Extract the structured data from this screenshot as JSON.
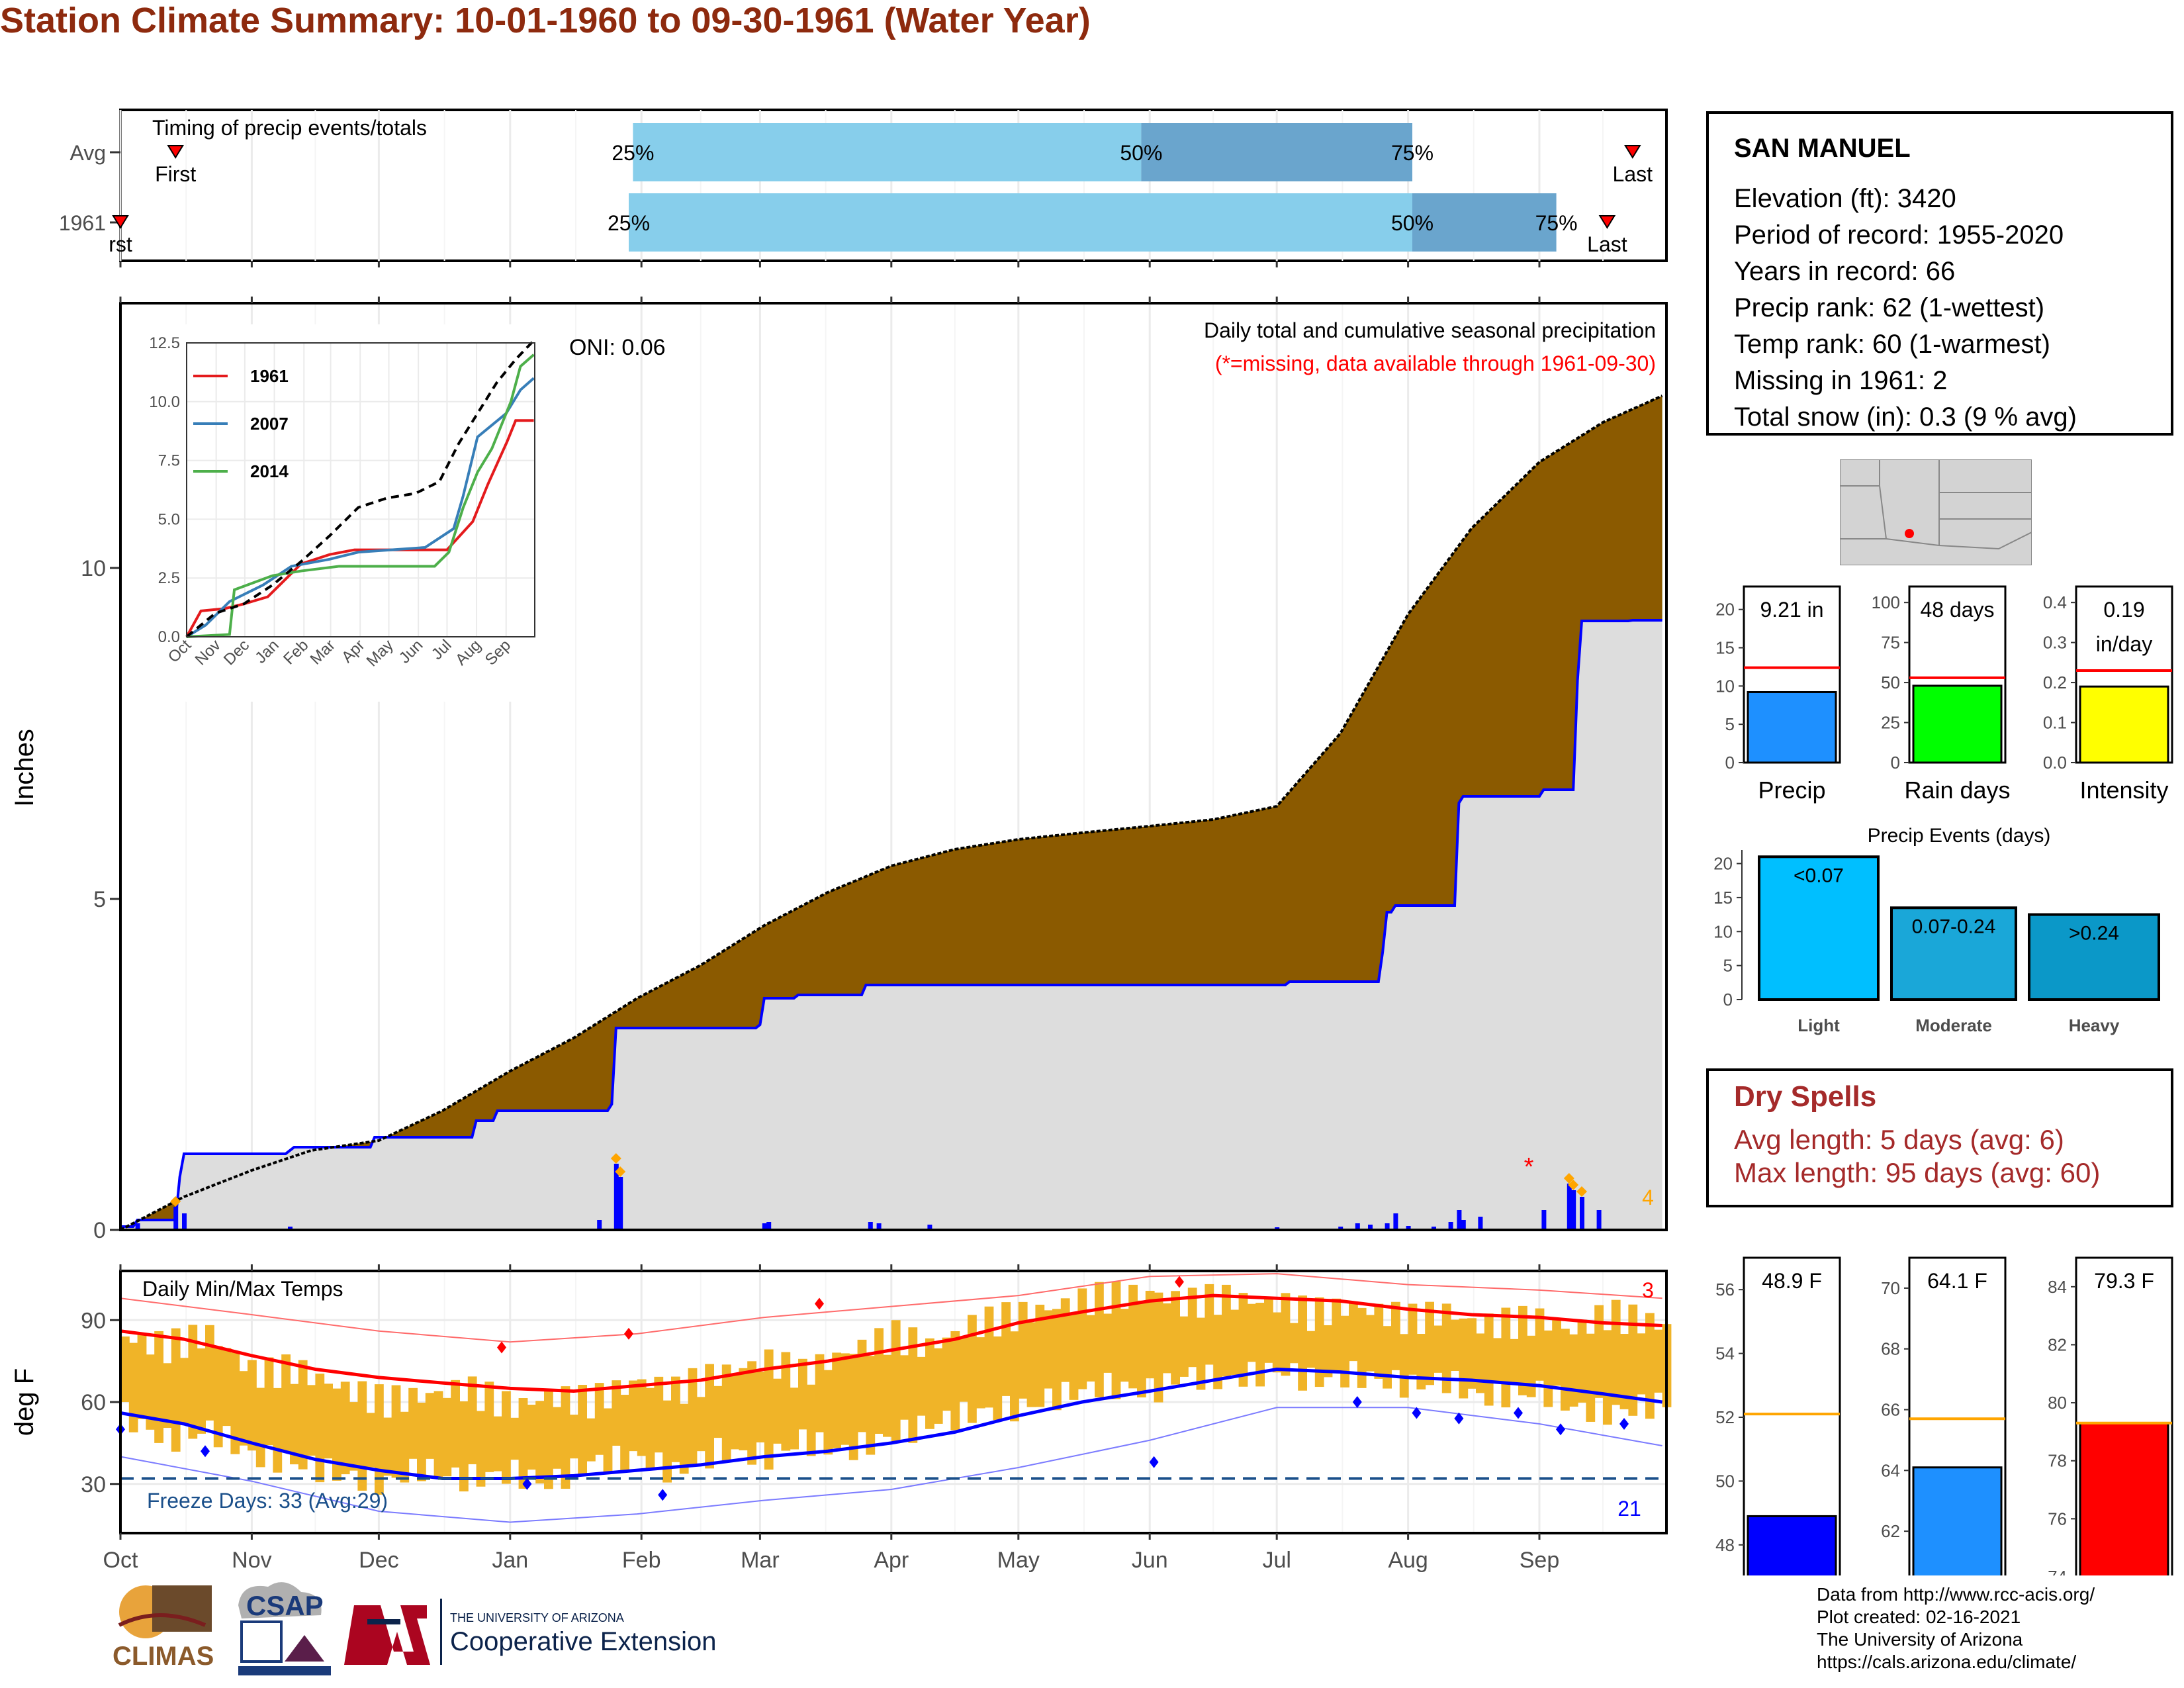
{
  "title": "Station Climate Summary: 10-01-1960 to 09-30-1961 (Water Year)",
  "timing": {
    "label": "Timing of precip events/totals",
    "rows": [
      {
        "name": "Avg",
        "first_day": 13,
        "q25_day": 121,
        "q50_day": 241,
        "q75_day": 305,
        "last_day": 357,
        "first_label": "First",
        "last_label": "Last",
        "q25_label": "25%",
        "q50_label": "50%",
        "q75_label": "75%"
      },
      {
        "name": "1961",
        "first_day": 0,
        "q25_day": 120,
        "q50_day": 305,
        "q75_day": 339,
        "last_day": 351,
        "first_label": "rst",
        "last_label": "Last",
        "q25_label": "25%",
        "q50_label": "50%",
        "q75_label": "75%"
      }
    ]
  },
  "precip_panel": {
    "ylabel": "Inches",
    "oni": "ONI: 0.06",
    "subtitle": "Daily total and cumulative seasonal precipitation",
    "missing_note": "(*=missing, data available through 1961-09-30)",
    "big_count": "4",
    "colors": {
      "avg_fill": "#8b5a00",
      "above_fill": "#008000",
      "below_fill": "#dddddd",
      "obs_line": "#0000ff",
      "bars": "#0000ff"
    }
  },
  "temp_panel": {
    "ylabel": "deg F",
    "label": "Daily Min/Max Temps",
    "freeze_text": "Freeze Days: 33 (Avg:29)",
    "records_max_count": "3",
    "records_min_count": "21",
    "freeze_line": 32
  },
  "months": [
    "Oct",
    "Nov",
    "Dec",
    "Jan",
    "Feb",
    "Mar",
    "Apr",
    "May",
    "Jun",
    "Jul",
    "Aug",
    "Sep"
  ],
  "station": {
    "name": "SAN MANUEL",
    "lines": [
      "Elevation (ft): 3420",
      "Period of record: 1955-2020",
      "Years in record: 66",
      "Precip rank: 62 (1-wettest)",
      "Temp rank: 60 (1-warmest)",
      "Missing in 1961: 2",
      "Total snow (in): 0.3 (9 % avg)"
    ]
  },
  "mini_bars": [
    {
      "name": "Precip",
      "value": 9.21,
      "avg": 12.4,
      "label": "9.21 in",
      "ylim": [
        0,
        23
      ],
      "ticks": [
        "0",
        "5",
        "10",
        "15",
        "20"
      ],
      "tickvals": [
        0,
        5,
        10,
        15,
        20
      ],
      "color": "#1e90ff"
    },
    {
      "name": "Rain days",
      "value": 48,
      "avg": 53,
      "label": "48 days",
      "ylim": [
        0,
        110
      ],
      "ticks": [
        "0",
        "25",
        "50",
        "75",
        "100"
      ],
      "tickvals": [
        0,
        25,
        50,
        75,
        100
      ],
      "color": "#00ff00"
    },
    {
      "name": "Intensity",
      "value": 0.19,
      "avg": 0.23,
      "label": "0.19 in/day",
      "ylim": [
        0,
        0.44
      ],
      "ticks": [
        "0.0",
        "0.1",
        "0.2",
        "0.3",
        "0.4"
      ],
      "tickvals": [
        0,
        0.1,
        0.2,
        0.3,
        0.4
      ],
      "color": "#ffff00"
    }
  ],
  "precip_events": {
    "title": "Precip Events (days)",
    "categories": [
      "Light",
      "Moderate",
      "Heavy"
    ],
    "values": [
      21,
      13.5,
      12.5
    ],
    "labels": [
      "<0.07",
      "0.07-0.24",
      ">0.24"
    ],
    "ticks": [
      "0",
      "5",
      "10",
      "15",
      "20"
    ],
    "colors": [
      "#00bfff",
      "#1aa7d8",
      "#0b98c8"
    ]
  },
  "dry_spells": {
    "title": "Dry Spells",
    "avg_line": "Avg length: 5 days (avg: 6)",
    "max_line": "Max length: 95 days (avg: 60)"
  },
  "temp_bars": [
    {
      "name": "T-min",
      "value": 48.9,
      "avg": 52.1,
      "label": "48.9 F",
      "ylim": [
        47,
        57
      ],
      "ticks": [
        "48",
        "50",
        "52",
        "54",
        "56"
      ],
      "tickvals": [
        48,
        50,
        52,
        54,
        56
      ],
      "color": "#0000ff"
    },
    {
      "name": "T-mean",
      "value": 64.1,
      "avg": 65.7,
      "label": "64.1 F",
      "ylim": [
        60.5,
        71
      ],
      "ticks": [
        "62",
        "64",
        "66",
        "68",
        "70"
      ],
      "tickvals": [
        62,
        64,
        66,
        68,
        70
      ],
      "color": "#1e90ff"
    },
    {
      "name": "T-max",
      "value": 79.3,
      "avg": 79.3,
      "label": "79.3 F",
      "ylim": [
        74,
        85
      ],
      "ticks": [
        "74",
        "76",
        "78",
        "80",
        "82",
        "84"
      ],
      "tickvals": [
        74,
        76,
        78,
        80,
        82,
        84
      ],
      "color": "#ff0000"
    }
  ],
  "credits": [
    "Data from http://www.rcc-acis.org/",
    "Plot created: 02-16-2021",
    "The University of Arizona",
    "https://cals.arizona.edu/climate/"
  ],
  "logos": {
    "climas": "CLIMAS",
    "csap": "CSAP",
    "ua_top": "THE UNIVERSITY OF ARIZONA",
    "ua_bottom": "Cooperative Extension"
  },
  "chart_data": [
    {
      "type": "area",
      "title": "Daily total and cumulative seasonal precipitation",
      "ylabel": "Inches",
      "ylim": [
        0,
        14
      ],
      "x_unit": "day of water year",
      "avg_cumulative": {
        "x": [
          0,
          15,
          31,
          45,
          61,
          76,
          92,
          107,
          122,
          137,
          152,
          167,
          182,
          197,
          212,
          227,
          243,
          258,
          273,
          288,
          304,
          319,
          335,
          350,
          364
        ],
        "y": [
          0,
          0.5,
          0.9,
          1.2,
          1.35,
          1.8,
          2.4,
          2.9,
          3.5,
          4.0,
          4.6,
          5.1,
          5.5,
          5.75,
          5.9,
          6.0,
          6.1,
          6.2,
          6.4,
          7.5,
          9.3,
          10.6,
          11.6,
          12.2,
          12.6
        ]
      },
      "observed_cumulative": {
        "x": [
          0,
          4,
          14,
          15,
          40,
          41,
          60,
          84,
          89,
          108,
          116,
          117,
          151,
          152,
          160,
          176,
          177,
          273,
          276,
          288,
          298,
          299,
          301,
          310,
          316,
          317,
          321,
          336,
          344,
          345,
          357,
          364
        ],
        "y": [
          0.05,
          0.15,
          0.8,
          1.15,
          1.2,
          1.25,
          1.4,
          1.65,
          1.8,
          1.8,
          1.9,
          3.05,
          3.1,
          3.5,
          3.55,
          3.7,
          3.7,
          3.7,
          3.75,
          3.75,
          4.2,
          4.8,
          4.9,
          4.9,
          6.45,
          6.55,
          6.55,
          6.65,
          8.3,
          9.2,
          9.21,
          9.21
        ]
      },
      "daily_bars": {
        "x": [
          4,
          13,
          15,
          40,
          113,
          117,
          118,
          152,
          153,
          177,
          179,
          191,
          273,
          288,
          292,
          295,
          299,
          301,
          304,
          310,
          314,
          316,
          317,
          321,
          336,
          342,
          343,
          345,
          349
        ],
        "y": [
          0.1,
          0.35,
          0.25,
          0.05,
          0.15,
          1.0,
          0.8,
          0.1,
          0.12,
          0.12,
          0.1,
          0.08,
          0.04,
          0.05,
          0.1,
          0.08,
          0.1,
          0.25,
          0.06,
          0.05,
          0.12,
          0.3,
          0.15,
          0.2,
          0.3,
          0.7,
          0.6,
          0.5,
          0.3
        ]
      },
      "inset": {
        "type": "line",
        "ylim": [
          0,
          12.5
        ],
        "yticks": [
          "0.0",
          "2.5",
          "5.0",
          "7.5",
          "10.0",
          "12.5"
        ],
        "xticks": [
          "Oct",
          "Nov",
          "Dec",
          "Jan",
          "Feb",
          "Mar",
          "Apr",
          "May",
          "Jun",
          "Jul",
          "Aug",
          "Sep"
        ],
        "series": [
          {
            "name": "1961",
            "color": "#e41a1c",
            "x": [
              0,
              15,
              40,
              60,
              85,
              120,
              150,
              176,
              273,
              300,
              316,
              336,
              345,
              364
            ],
            "y": [
              0,
              1.1,
              1.2,
              1.4,
              1.7,
              3.1,
              3.5,
              3.7,
              3.7,
              4.9,
              6.5,
              8.3,
              9.2,
              9.2
            ]
          },
          {
            "name": "2007",
            "color": "#377eb8",
            "x": [
              0,
              20,
              45,
              80,
              110,
              150,
              180,
              250,
              265,
              280,
              290,
              305,
              320,
              335,
              350,
              364
            ],
            "y": [
              0,
              0.5,
              1.5,
              2.2,
              3.0,
              3.3,
              3.6,
              3.8,
              4.2,
              4.6,
              6.0,
              8.5,
              9.0,
              9.5,
              10.5,
              11.0
            ]
          },
          {
            "name": "2014",
            "color": "#4daf4a",
            "x": [
              0,
              45,
              50,
              90,
              120,
              160,
              200,
              260,
              275,
              290,
              305,
              320,
              340,
              350,
              364
            ],
            "y": [
              0,
              0.1,
              2.0,
              2.6,
              2.8,
              3.0,
              3.0,
              3.0,
              3.6,
              5.5,
              7.0,
              8.0,
              10.0,
              11.5,
              12.0
            ]
          },
          {
            "name": "avg",
            "color": "#000000",
            "x": [
              0,
              30,
              60,
              90,
              120,
              150,
              180,
              210,
              240,
              265,
              285,
              305,
              325,
              345,
              364
            ],
            "y": [
              0,
              1.0,
              1.4,
              2.2,
              3.2,
              4.3,
              5.5,
              5.9,
              6.1,
              6.6,
              8.2,
              9.5,
              10.8,
              11.8,
              12.6
            ]
          }
        ]
      }
    },
    {
      "type": "line",
      "title": "Daily Min/Max Temps",
      "ylabel": "deg F",
      "yticks": [
        "30",
        "60",
        "90"
      ],
      "ylim": [
        12,
        108
      ],
      "avg_max": {
        "x": [
          0,
          15,
          31,
          46,
          61,
          76,
          92,
          107,
          122,
          137,
          152,
          167,
          182,
          197,
          212,
          227,
          243,
          258,
          273,
          288,
          304,
          319,
          335,
          350,
          364
        ],
        "y": [
          86,
          83,
          77,
          72,
          69,
          67,
          65,
          64,
          66,
          68,
          72,
          75,
          79,
          83,
          89,
          93,
          97,
          99,
          98,
          97,
          94,
          92,
          91,
          89,
          88
        ]
      },
      "avg_min": {
        "x": [
          0,
          15,
          31,
          46,
          61,
          76,
          92,
          107,
          122,
          137,
          152,
          167,
          182,
          197,
          212,
          227,
          243,
          258,
          273,
          288,
          304,
          319,
          335,
          350,
          364
        ],
        "y": [
          56,
          52,
          45,
          39,
          35,
          32,
          32,
          33,
          35,
          37,
          40,
          42,
          45,
          49,
          55,
          60,
          64,
          68,
          72,
          71,
          69,
          68,
          66,
          63,
          60
        ]
      },
      "record_max": {
        "x": [
          0,
          31,
          61,
          92,
          122,
          152,
          182,
          212,
          243,
          273,
          304,
          335,
          364
        ],
        "y": [
          98,
          92,
          86,
          82,
          85,
          91,
          95,
          99,
          106,
          107,
          103,
          101,
          98
        ]
      },
      "record_min": {
        "x": [
          0,
          31,
          61,
          92,
          122,
          152,
          182,
          212,
          243,
          273,
          304,
          335,
          364
        ],
        "y": [
          40,
          31,
          20,
          16,
          19,
          24,
          28,
          36,
          46,
          58,
          58,
          52,
          44
        ]
      },
      "obs_max": {
        "x": [
          0,
          10,
          20,
          31,
          40,
          50,
          61,
          70,
          80,
          92,
          100,
          110,
          122,
          130,
          140,
          152,
          160,
          170,
          182,
          190,
          200,
          212,
          220,
          230,
          243,
          250,
          260,
          273,
          280,
          290,
          304,
          312,
          320,
          335,
          342,
          350,
          364
        ],
        "y": [
          84,
          80,
          85,
          70,
          72,
          66,
          60,
          62,
          65,
          58,
          62,
          60,
          68,
          64,
          70,
          75,
          70,
          78,
          84,
          80,
          88,
          92,
          95,
          98,
          100,
          96,
          98,
          96,
          92,
          95,
          90,
          93,
          88,
          90,
          86,
          92,
          88
        ]
      },
      "obs_min": {
        "x": [
          0,
          10,
          20,
          31,
          40,
          50,
          61,
          70,
          80,
          92,
          100,
          110,
          122,
          130,
          140,
          152,
          160,
          170,
          182,
          190,
          200,
          212,
          220,
          230,
          243,
          250,
          260,
          273,
          280,
          290,
          304,
          312,
          320,
          335,
          342,
          350,
          364
        ],
        "y": [
          55,
          46,
          50,
          40,
          38,
          34,
          30,
          36,
          32,
          34,
          30,
          38,
          40,
          34,
          42,
          40,
          46,
          42,
          48,
          52,
          56,
          58,
          62,
          66,
          64,
          70,
          68,
          72,
          68,
          70,
          66,
          68,
          62,
          64,
          58,
          56,
          60
        ]
      }
    },
    {
      "type": "bar",
      "title": "Precip Events (days)",
      "categories": [
        "Light",
        "Moderate",
        "Heavy"
      ],
      "values": [
        21,
        13.5,
        12.5
      ]
    }
  ]
}
